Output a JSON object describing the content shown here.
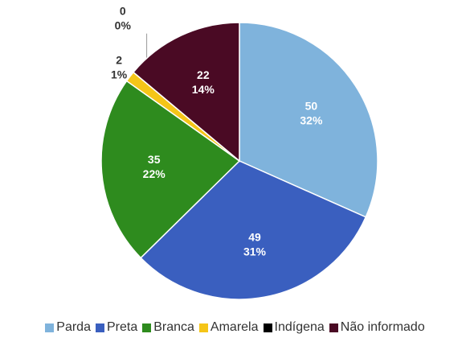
{
  "chart_data": {
    "type": "pie",
    "categories": [
      "Parda",
      "Preta",
      "Branca",
      "Amarela",
      "Indígena",
      "Não informado"
    ],
    "values": [
      50,
      49,
      35,
      2,
      0,
      22
    ],
    "percent_labels": [
      "32%",
      "31%",
      "22%",
      "1%",
      "0%",
      "14%"
    ],
    "colors": [
      "#7fb3dc",
      "#3a5fbf",
      "#2e8b1e",
      "#f5c518",
      "#000000",
      "#4a0a24"
    ],
    "legend": "bottom"
  }
}
